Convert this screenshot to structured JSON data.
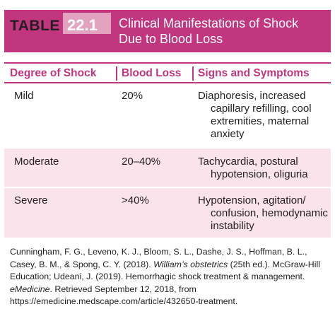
{
  "table": {
    "label_word": "TABLE",
    "label_number": "22.1",
    "title_line1": "Clinical Manifestations of Shock",
    "title_line2": "Due to Blood Loss",
    "headers": [
      "Degree of Shock",
      "Blood Loss",
      "Signs and Symptoms"
    ],
    "rows": [
      {
        "degree": "Mild",
        "blood_loss": "20%",
        "signs": "Diaphoresis, increased capillary refilling, cool extremities, maternal anxiety"
      },
      {
        "degree": "Moderate",
        "blood_loss": "20–40%",
        "signs": "Tachycardia, postural hypotension, oliguria"
      },
      {
        "degree": "Severe",
        "blood_loss": ">40%",
        "signs": "Hypotension, agitation/ confusion, hemodynamic instability"
      }
    ]
  },
  "source": {
    "part1": "Cunningham, F. G., Leveno, K. J., Bloom, S. L., Dashe, J. S., Hoffman, B. L., Casey, B. M., & Spong, C. Y. (2018). ",
    "book_title": "William’s obstetrics",
    "part2": " (25th ed.). McGraw-Hill Education; Udeani, J. (2019). Hemorrhagic shock treatment & management. ",
    "journal": "eMedicine",
    "part3": ". Retrieved September 12, 2018, from https://emedicine.medscape.com/article/432650-treatment."
  },
  "colors": {
    "accent": "#c2357f",
    "number_box": "#e3a2c0",
    "row_tint": "#fbe3ec",
    "text": "#231f20"
  }
}
